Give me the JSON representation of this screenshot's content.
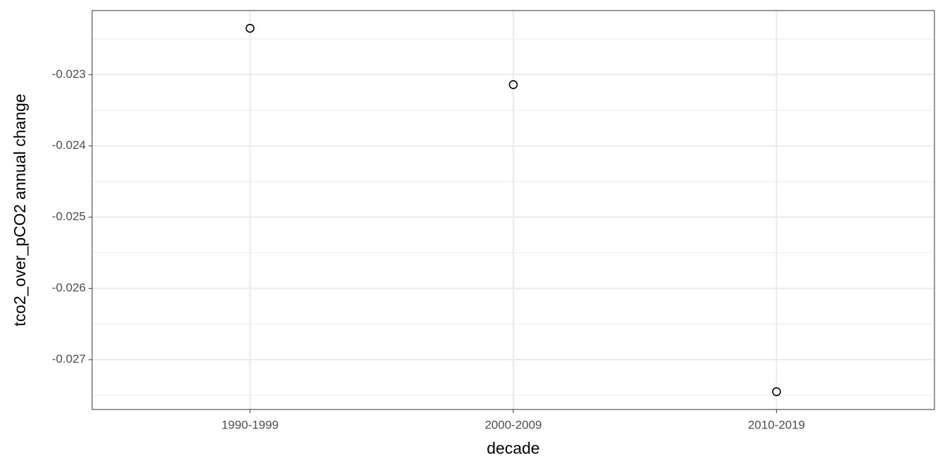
{
  "chart_data": {
    "type": "scatter",
    "x_label": "decade",
    "y_label": "tco2_over_pCO2 annual change",
    "categories": [
      "1990-1999",
      "2000-2009",
      "2010-2019"
    ],
    "values": [
      -0.02235,
      -0.02314,
      -0.02745
    ],
    "ylim": [
      -0.0277,
      -0.0221
    ],
    "yticks": [
      -0.027,
      -0.026,
      -0.025,
      -0.024,
      -0.023
    ],
    "grid": true,
    "color": "#000000"
  }
}
